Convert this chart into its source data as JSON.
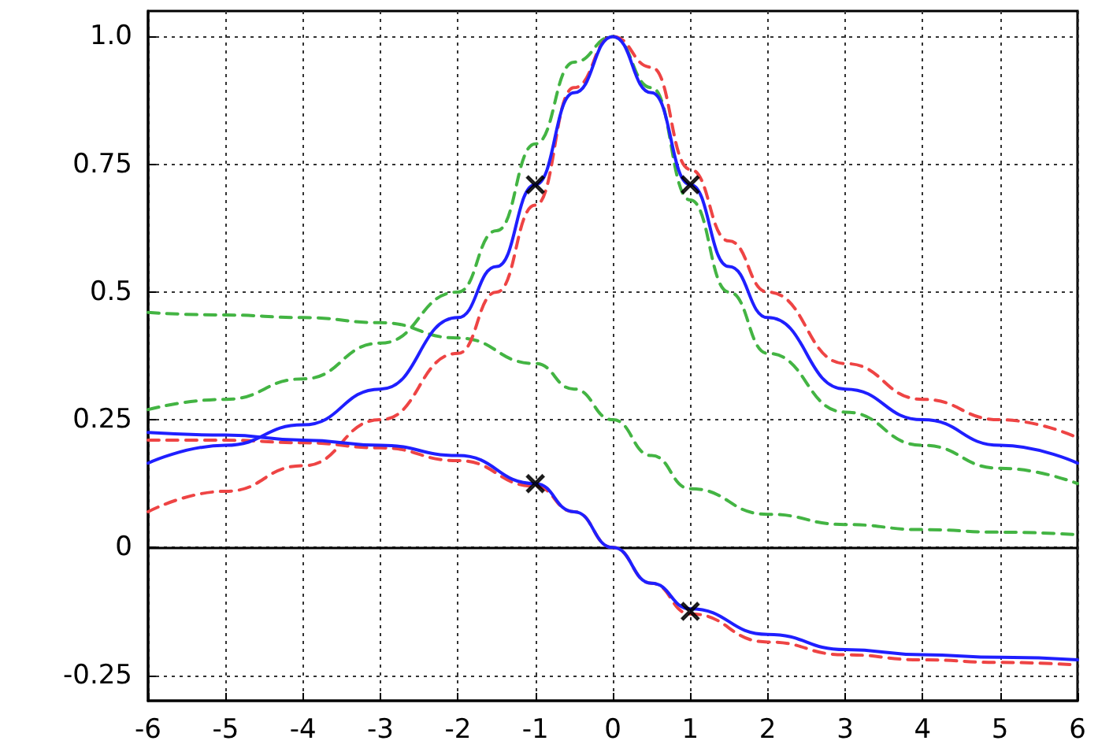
{
  "chart_data": {
    "type": "line",
    "grid": true,
    "xlim": [
      -6,
      6
    ],
    "xticks": [
      -6,
      -5,
      -4,
      -3,
      -2,
      -1,
      0,
      1,
      2,
      3,
      4,
      5,
      6
    ],
    "ylim": [
      -0.3,
      1.05
    ],
    "yticks": [
      -0.25,
      0,
      0.25,
      0.5,
      0.75,
      {
        "value": 1,
        "label": "1.0"
      }
    ],
    "ref_lines": [
      {
        "axis": "y",
        "value": 0,
        "color": "#000000",
        "line_style": "solid"
      }
    ],
    "series": [
      {
        "color": "#43b443",
        "line_style": "dashed",
        "marker": "none",
        "x": [
          -6,
          -5,
          -4,
          -3,
          -2,
          -1.5,
          -1,
          -0.5,
          0,
          0.5,
          1,
          1.5,
          2,
          3,
          4,
          5,
          6
        ],
        "values": [
          0.27,
          0.29,
          0.33,
          0.4,
          0.5,
          0.62,
          0.79,
          0.95,
          1.0,
          0.9,
          0.68,
          0.5,
          0.38,
          0.265,
          0.2,
          0.155,
          0.125
        ]
      },
      {
        "color": "#43b443",
        "line_style": "dashed",
        "marker": "none",
        "x": [
          -6,
          -5,
          -4,
          -3,
          -2,
          -1,
          -0.5,
          0,
          0.5,
          1,
          2,
          3,
          4,
          5,
          6
        ],
        "values": [
          0.46,
          0.455,
          0.45,
          0.44,
          0.41,
          0.36,
          0.31,
          0.25,
          0.18,
          0.115,
          0.065,
          0.045,
          0.035,
          0.03,
          0.025
        ]
      },
      {
        "color": "#ee4444",
        "line_style": "dashed",
        "marker": "none",
        "x": [
          -6,
          -5,
          -4,
          -3,
          -2,
          -1.5,
          -1,
          -0.5,
          0,
          0.5,
          1,
          1.5,
          2,
          3,
          4,
          5,
          6
        ],
        "values": [
          0.07,
          0.11,
          0.16,
          0.25,
          0.38,
          0.5,
          0.67,
          0.9,
          1.0,
          0.94,
          0.74,
          0.6,
          0.5,
          0.36,
          0.29,
          0.25,
          0.215
        ]
      },
      {
        "color": "#ee4444",
        "line_style": "dashed",
        "marker": "none",
        "x": [
          -6,
          -5,
          -4,
          -3,
          -2,
          -1,
          -0.5,
          0,
          0.5,
          1,
          2,
          3,
          4,
          5,
          6
        ],
        "values": [
          0.21,
          0.21,
          0.205,
          0.195,
          0.17,
          0.12,
          0.07,
          0,
          -0.07,
          -0.13,
          -0.185,
          -0.21,
          -0.22,
          -0.225,
          -0.23
        ]
      },
      {
        "color": "#1f1fff",
        "line_style": "solid",
        "marker": "none",
        "x": [
          -6,
          -5,
          -4,
          -3,
          -2,
          -1.5,
          -1,
          -0.5,
          0,
          0.5,
          1,
          1.5,
          2,
          3,
          4,
          5,
          6
        ],
        "values": [
          0.165,
          0.2,
          0.24,
          0.31,
          0.45,
          0.55,
          0.71,
          0.89,
          1.0,
          0.89,
          0.71,
          0.55,
          0.45,
          0.31,
          0.25,
          0.2,
          0.165
        ]
      },
      {
        "color": "#1f1fff",
        "line_style": "solid",
        "marker": "none",
        "x": [
          -6,
          -5,
          -4,
          -3,
          -2,
          -1,
          -0.5,
          0,
          0.5,
          1,
          2,
          3,
          4,
          5,
          6
        ],
        "values": [
          0.225,
          0.22,
          0.21,
          0.2,
          0.18,
          0.125,
          0.07,
          0,
          -0.07,
          -0.12,
          -0.17,
          -0.2,
          -0.21,
          -0.215,
          -0.22
        ]
      },
      {
        "type": "scatter",
        "color": "#000000",
        "marker": "cross",
        "x": [
          -1,
          1,
          -1,
          1
        ],
        "values": [
          0.71,
          0.71,
          0.125,
          -0.125
        ]
      }
    ]
  }
}
